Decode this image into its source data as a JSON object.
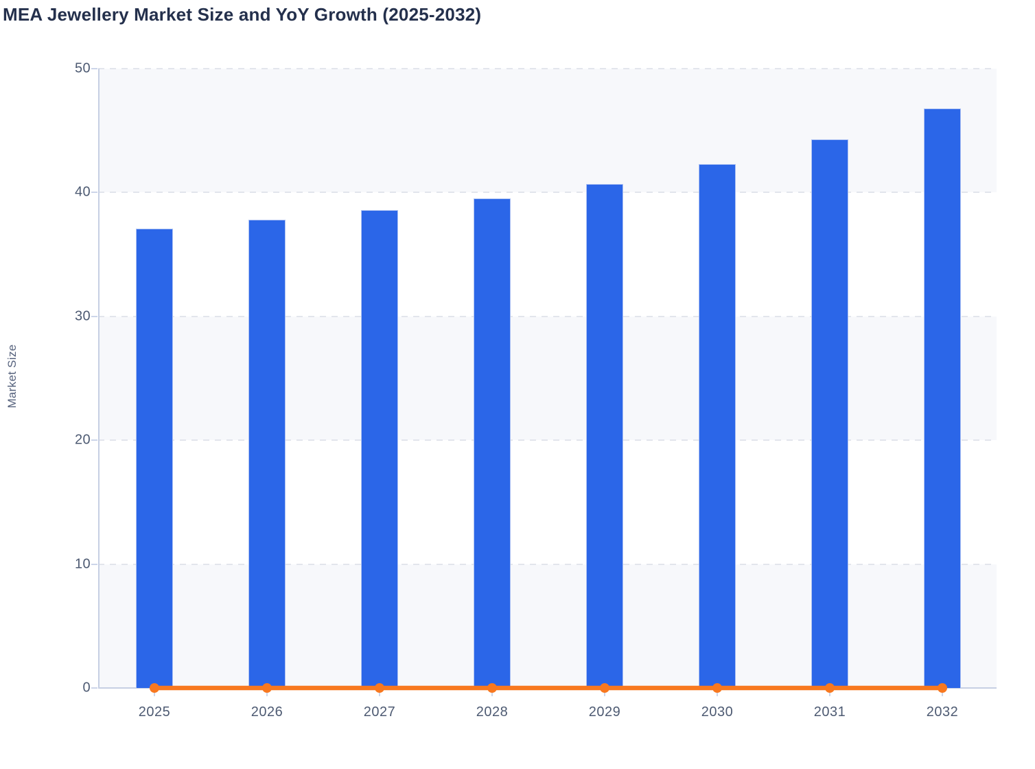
{
  "chart_data": {
    "type": "bar",
    "title": "MEA Jewellery Market Size and YoY Growth (2025-2032)",
    "ylabel": "Market Size",
    "xlabel": "",
    "categories": [
      "2025",
      "2026",
      "2027",
      "2028",
      "2029",
      "2030",
      "2031",
      "2032"
    ],
    "series": [
      {
        "name": "Market Size",
        "type": "bar",
        "color": "#2b66e8",
        "values": [
          37.1,
          37.8,
          38.6,
          39.5,
          40.7,
          42.3,
          44.3,
          46.8
        ]
      },
      {
        "name": "YoY Growth",
        "type": "line",
        "color": "#f8781f",
        "values": [
          0,
          0,
          0,
          0,
          0,
          0,
          0,
          0
        ]
      }
    ],
    "ylim": [
      0,
      50
    ],
    "yticks": [
      0,
      10,
      20,
      30,
      40,
      50
    ],
    "grid": "horizontal-dashed",
    "legend": "none",
    "plot_background": "alternating-light-bands"
  },
  "style": {
    "title_color": "#24304c",
    "axis_title_color": "#55617c",
    "tick_label_color": "#4d5a72",
    "band_color": "#f7f8fb",
    "gridline_color": "#e2e5ec",
    "axis_line_color": "#c6cfe3",
    "tick_mark_color": "#ccd5e9",
    "bar_border_color": "#aec2f3"
  }
}
